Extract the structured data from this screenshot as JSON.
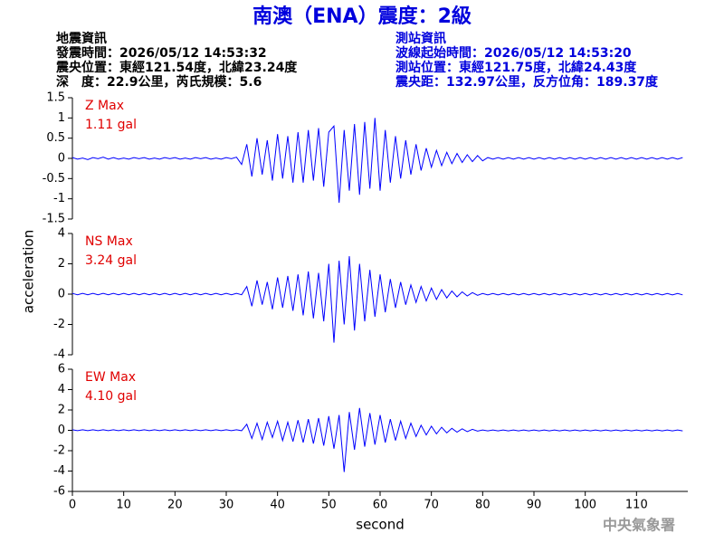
{
  "header": {
    "title": "南澳（ENA）震度：2級",
    "left": [
      "地震資訊",
      "發震時間：2026/05/12 14:53:32",
      "震央位置：東經121.54度，北緯23.24度",
      "深　度：22.9公里，芮氏規模：5.6"
    ],
    "right": [
      "測站資訊",
      "波線起始時間：2026/05/12 14:53:20",
      "測站位置：東經121.75度，北緯24.43度",
      "震央距：132.97公里，反方位角：189.37度"
    ]
  },
  "footer": "中央氣象署",
  "chart_data": [
    {
      "type": "line",
      "annotations": [
        "Z Max",
        "1.11 gal"
      ],
      "color": "#0000ff",
      "xlim": [
        0,
        120
      ],
      "ylim": [
        -1.5,
        1.5
      ],
      "yticks": [
        -1.5,
        -1,
        -0.5,
        0,
        0.5,
        1,
        1.5
      ],
      "x": [
        0,
        1,
        2,
        3,
        4,
        5,
        6,
        7,
        8,
        9,
        10,
        11,
        12,
        13,
        14,
        15,
        16,
        17,
        18,
        19,
        20,
        21,
        22,
        23,
        24,
        25,
        26,
        27,
        28,
        29,
        30,
        31,
        32,
        33,
        34,
        35,
        36,
        37,
        38,
        39,
        40,
        41,
        42,
        43,
        44,
        45,
        46,
        47,
        48,
        49,
        50,
        51,
        52,
        53,
        54,
        55,
        56,
        57,
        58,
        59,
        60,
        61,
        62,
        63,
        64,
        65,
        66,
        67,
        68,
        69,
        70,
        71,
        72,
        73,
        74,
        75,
        76,
        77,
        78,
        79,
        80,
        81,
        82,
        83,
        84,
        85,
        86,
        87,
        88,
        89,
        90,
        91,
        92,
        93,
        94,
        95,
        96,
        97,
        98,
        99,
        100,
        101,
        102,
        103,
        104,
        105,
        106,
        107,
        108,
        109,
        110,
        111,
        112,
        113,
        114,
        115,
        116,
        117,
        118,
        119
      ],
      "values": [
        0.02,
        -0.02,
        0.01,
        -0.03,
        0.02,
        -0.01,
        0.03,
        -0.02,
        0.02,
        -0.02,
        0.01,
        -0.02,
        0.02,
        -0.01,
        0.02,
        -0.02,
        0.01,
        -0.02,
        0.02,
        -0.01,
        0.02,
        -0.02,
        0.01,
        -0.02,
        0.02,
        -0.01,
        0.02,
        -0.02,
        0.01,
        -0.02,
        0.02,
        -0.01,
        0.03,
        -0.15,
        0.35,
        -0.45,
        0.5,
        -0.4,
        0.45,
        -0.55,
        0.6,
        -0.5,
        0.55,
        -0.6,
        0.65,
        -0.6,
        0.7,
        -0.55,
        0.75,
        -0.7,
        0.65,
        0.8,
        -1.1,
        0.7,
        -0.8,
        0.85,
        -0.9,
        0.9,
        -0.75,
        1.0,
        -0.8,
        0.7,
        -0.6,
        0.55,
        -0.5,
        0.45,
        -0.4,
        0.35,
        -0.3,
        0.25,
        -0.22,
        0.2,
        -0.18,
        0.15,
        -0.13,
        0.12,
        -0.1,
        0.09,
        -0.08,
        0.07,
        -0.06,
        0.02,
        -0.02,
        0.02,
        -0.02,
        0.02,
        -0.02,
        0.02,
        -0.02,
        0.02,
        -0.02,
        0.02,
        -0.02,
        0.02,
        -0.02,
        0.02,
        -0.02,
        0.02,
        -0.02,
        0.02,
        -0.02,
        0.02,
        -0.02,
        0.02,
        -0.02,
        0.02,
        -0.02,
        0.02,
        -0.02,
        0.02,
        -0.02,
        0.02,
        -0.02,
        0.02,
        -0.02,
        0.02,
        -0.02,
        0.02,
        -0.02,
        0.02
      ]
    },
    {
      "type": "line",
      "annotations": [
        "NS Max",
        "3.24 gal"
      ],
      "color": "#0000ff",
      "ylabel": "acceleration",
      "xlim": [
        0,
        120
      ],
      "ylim": [
        -4,
        4
      ],
      "yticks": [
        -4,
        -2,
        0,
        2,
        4
      ],
      "x": [
        0,
        1,
        2,
        3,
        4,
        5,
        6,
        7,
        8,
        9,
        10,
        11,
        12,
        13,
        14,
        15,
        16,
        17,
        18,
        19,
        20,
        21,
        22,
        23,
        24,
        25,
        26,
        27,
        28,
        29,
        30,
        31,
        32,
        33,
        34,
        35,
        36,
        37,
        38,
        39,
        40,
        41,
        42,
        43,
        44,
        45,
        46,
        47,
        48,
        49,
        50,
        51,
        52,
        53,
        54,
        55,
        56,
        57,
        58,
        59,
        60,
        61,
        62,
        63,
        64,
        65,
        66,
        67,
        68,
        69,
        70,
        71,
        72,
        73,
        74,
        75,
        76,
        77,
        78,
        79,
        80,
        81,
        82,
        83,
        84,
        85,
        86,
        87,
        88,
        89,
        90,
        91,
        92,
        93,
        94,
        95,
        96,
        97,
        98,
        99,
        100,
        101,
        102,
        103,
        104,
        105,
        106,
        107,
        108,
        109,
        110,
        111,
        112,
        113,
        114,
        115,
        116,
        117,
        118,
        119
      ],
      "values": [
        0.05,
        -0.04,
        0.05,
        -0.04,
        0.05,
        -0.04,
        0.05,
        -0.04,
        0.05,
        -0.04,
        0.05,
        -0.04,
        0.05,
        -0.04,
        0.05,
        -0.04,
        0.05,
        -0.04,
        0.05,
        -0.04,
        0.05,
        -0.04,
        0.05,
        -0.04,
        0.05,
        -0.04,
        0.05,
        -0.04,
        0.05,
        -0.04,
        0.05,
        -0.04,
        0.05,
        -0.04,
        0.5,
        -0.8,
        0.9,
        -0.7,
        0.8,
        -1.0,
        1.1,
        -0.9,
        1.2,
        -1.1,
        1.3,
        -1.4,
        1.5,
        -1.6,
        1.4,
        -1.8,
        2.0,
        -3.2,
        2.2,
        -2.0,
        2.5,
        -2.4,
        2.0,
        -1.8,
        1.6,
        -1.5,
        1.3,
        -1.2,
        1.0,
        -0.9,
        0.8,
        -0.7,
        0.6,
        -0.55,
        0.5,
        -0.45,
        0.4,
        -0.35,
        0.3,
        -0.25,
        0.2,
        -0.18,
        0.15,
        -0.12,
        0.1,
        -0.08,
        0.04,
        -0.05,
        0.04,
        -0.05,
        0.04,
        -0.05,
        0.04,
        -0.05,
        0.04,
        -0.05,
        0.04,
        -0.05,
        0.04,
        -0.05,
        0.04,
        -0.05,
        0.04,
        -0.05,
        0.04,
        -0.05,
        0.04,
        -0.05,
        0.04,
        -0.05,
        0.04,
        -0.05,
        0.04,
        -0.05,
        0.04,
        -0.05,
        0.04,
        -0.05,
        0.04,
        -0.05,
        0.04,
        -0.05,
        0.04,
        -0.05,
        0.04,
        -0.05
      ]
    },
    {
      "type": "line",
      "annotations": [
        "EW Max",
        "4.10 gal"
      ],
      "color": "#0000ff",
      "xlabel": "second",
      "xlim": [
        0,
        120
      ],
      "xticks": [
        0,
        10,
        20,
        30,
        40,
        50,
        60,
        70,
        80,
        90,
        100,
        110
      ],
      "ylim": [
        -6,
        6
      ],
      "yticks": [
        -6,
        -4,
        -2,
        0,
        2,
        4,
        6
      ],
      "x": [
        0,
        1,
        2,
        3,
        4,
        5,
        6,
        7,
        8,
        9,
        10,
        11,
        12,
        13,
        14,
        15,
        16,
        17,
        18,
        19,
        20,
        21,
        22,
        23,
        24,
        25,
        26,
        27,
        28,
        29,
        30,
        31,
        32,
        33,
        34,
        35,
        36,
        37,
        38,
        39,
        40,
        41,
        42,
        43,
        44,
        45,
        46,
        47,
        48,
        49,
        50,
        51,
        52,
        53,
        54,
        55,
        56,
        57,
        58,
        59,
        60,
        61,
        62,
        63,
        64,
        65,
        66,
        67,
        68,
        69,
        70,
        71,
        72,
        73,
        74,
        75,
        76,
        77,
        78,
        79,
        80,
        81,
        82,
        83,
        84,
        85,
        86,
        87,
        88,
        89,
        90,
        91,
        92,
        93,
        94,
        95,
        96,
        97,
        98,
        99,
        100,
        101,
        102,
        103,
        104,
        105,
        106,
        107,
        108,
        109,
        110,
        111,
        112,
        113,
        114,
        115,
        116,
        117,
        118,
        119
      ],
      "values": [
        0.05,
        -0.04,
        0.05,
        -0.04,
        0.05,
        -0.04,
        0.05,
        -0.04,
        0.05,
        -0.04,
        0.05,
        -0.04,
        0.05,
        -0.04,
        0.05,
        -0.04,
        0.05,
        -0.04,
        0.05,
        -0.04,
        0.05,
        -0.04,
        0.05,
        -0.04,
        0.05,
        -0.04,
        0.05,
        -0.04,
        0.05,
        -0.04,
        0.05,
        -0.04,
        0.05,
        -0.04,
        0.6,
        -0.8,
        0.7,
        -0.9,
        0.8,
        -0.7,
        0.9,
        -1.0,
        0.8,
        -1.1,
        1.0,
        -1.2,
        1.1,
        -1.3,
        1.2,
        -1.5,
        1.4,
        -1.8,
        1.5,
        -4.1,
        1.8,
        -1.9,
        2.2,
        -1.6,
        1.7,
        -1.4,
        1.5,
        -1.2,
        1.1,
        -1.0,
        0.9,
        -0.8,
        0.7,
        -0.6,
        0.5,
        -0.45,
        0.4,
        -0.35,
        0.3,
        -0.25,
        0.2,
        -0.18,
        0.15,
        -0.12,
        0.1,
        -0.08,
        0.04,
        -0.05,
        0.04,
        -0.05,
        0.04,
        -0.05,
        0.04,
        -0.05,
        0.04,
        -0.05,
        0.04,
        -0.05,
        0.04,
        -0.05,
        0.04,
        -0.05,
        0.04,
        -0.05,
        0.04,
        -0.05,
        0.04,
        -0.05,
        0.04,
        -0.05,
        0.04,
        -0.05,
        0.04,
        -0.05,
        0.04,
        -0.05,
        0.04,
        -0.05,
        0.04,
        -0.05,
        0.04,
        -0.05,
        0.04,
        -0.05,
        0.04,
        -0.05
      ]
    }
  ]
}
